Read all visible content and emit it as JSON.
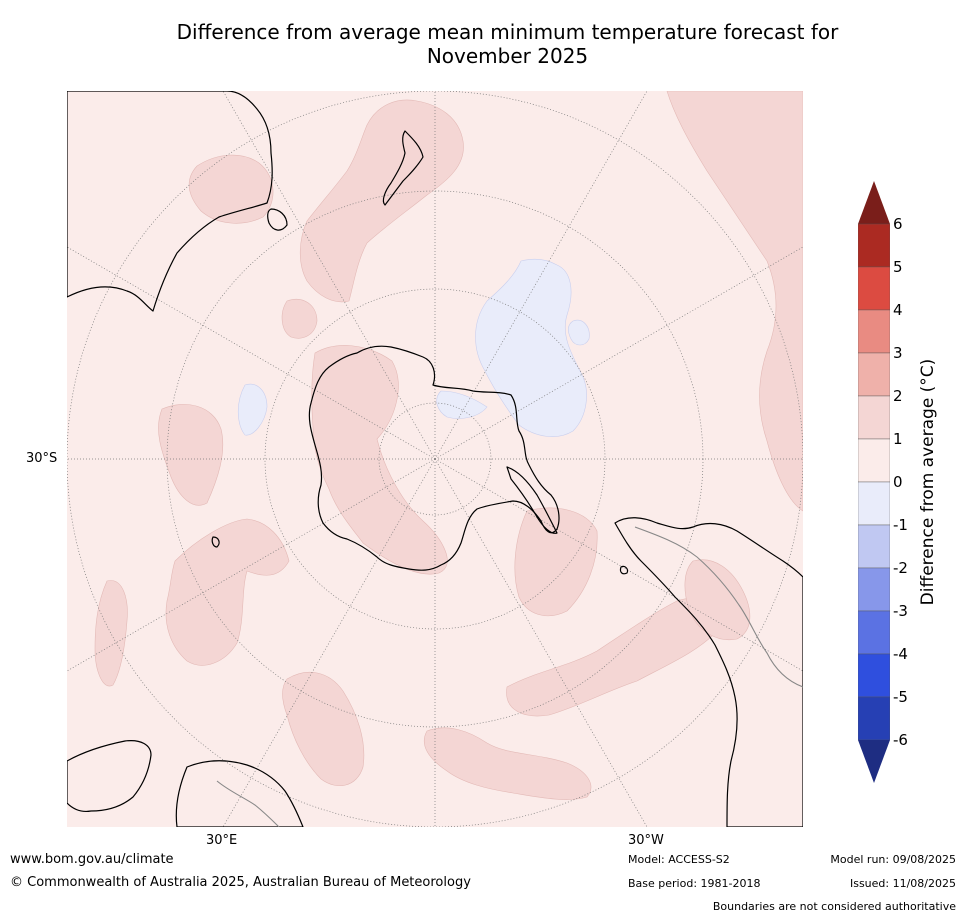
{
  "title": {
    "line1": "Difference from average mean minimum temperature forecast for",
    "line2": "November 2025"
  },
  "map": {
    "projection": "south-polar-stereographic",
    "lat_label": "30°S",
    "lon_labels": [
      "30°E",
      "30°W"
    ],
    "colors": {
      "ocean_neutral": "#fbecea",
      "warm_anomaly": "#f4d6d4",
      "cool_anomaly": "#e9ecfa",
      "coastline": "#000000",
      "graticule": "#777777"
    }
  },
  "colorbar": {
    "label": "Difference from average (°C)",
    "ticks": [
      "6",
      "5",
      "4",
      "3",
      "2",
      "1",
      "0",
      "-1",
      "-2",
      "-3",
      "-4",
      "-5",
      "-6"
    ],
    "colors_top_to_bottom": [
      "#7a1e1a",
      "#ab2a22",
      "#dc4b41",
      "#e98b82",
      "#efb1aa",
      "#f4d6d4",
      "#fbecea",
      "#e9ecfa",
      "#c0c8f2",
      "#8797ea",
      "#5b72e3",
      "#2f4fde",
      "#2640b4",
      "#1e2d82"
    ]
  },
  "footer": {
    "url": "www.bom.gov.au/climate",
    "copyright": "© Commonwealth of Australia 2025, Australian Bureau of Meteorology",
    "model": "Model: ACCESS-S2",
    "base_period": "Base period: 1981-2018",
    "model_run": "Model run: 09/08/2025",
    "issued": "Issued: 11/08/2025",
    "disclaimer": "Boundaries are not considered authoritative"
  }
}
